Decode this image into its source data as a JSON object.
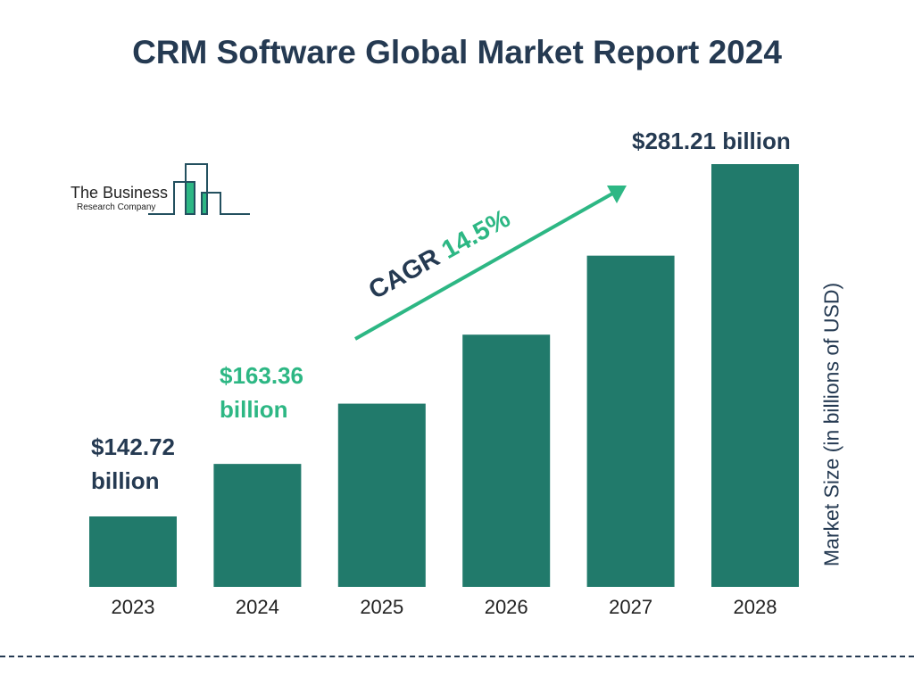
{
  "chart_data": {
    "type": "bar",
    "title": "CRM Software Global Market Report 2024",
    "ylabel": "Market Size (in billions of USD)",
    "categories": [
      "2023",
      "2024",
      "2025",
      "2026",
      "2027",
      "2028"
    ],
    "values": [
      142.72,
      163.36,
      187.05,
      214.17,
      245.22,
      281.21
    ],
    "data_labels": [
      {
        "category": "2023",
        "line1": "$142.72",
        "line2": "billion",
        "color": "#253a52"
      },
      {
        "category": "2024",
        "line1": "$163.36",
        "line2": "billion",
        "color": "#2db784"
      },
      {
        "category": "2028",
        "line1": "$281.21 billion",
        "color": "#253a52"
      }
    ],
    "annotation": {
      "prefix": "CAGR ",
      "value": "14.5%",
      "prefix_color": "#253a52",
      "value_color": "#2db784"
    },
    "bar_color": "#217a6b",
    "grid": false
  },
  "logo": {
    "line1": "The Business",
    "line2": "Research Company"
  }
}
